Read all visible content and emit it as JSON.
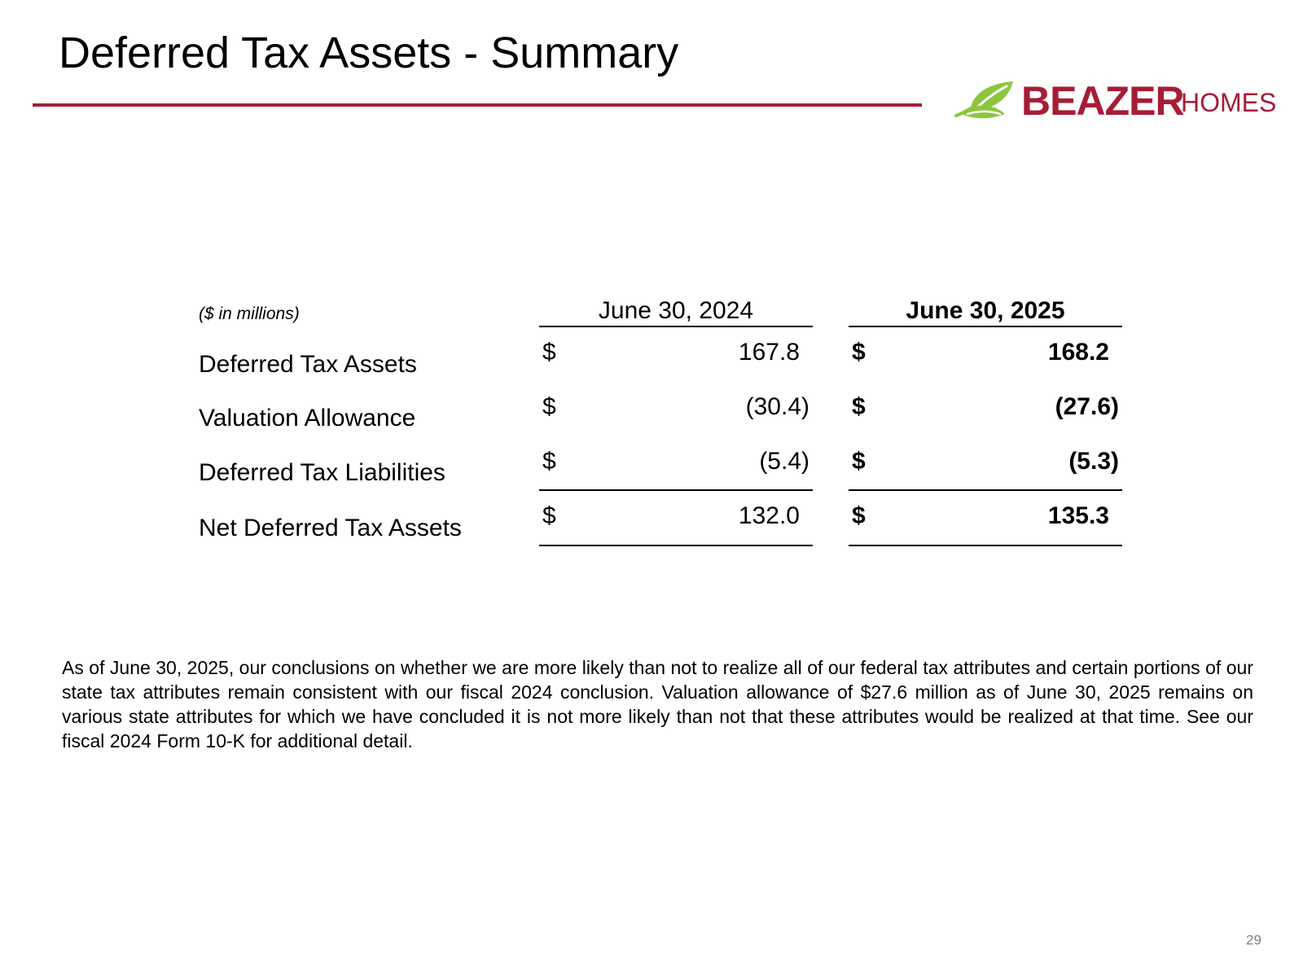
{
  "slide": {
    "title": "Deferred Tax Assets - Summary",
    "page_number": "29"
  },
  "logo": {
    "brand": "BEAZER",
    "sub": "HOMES"
  },
  "table": {
    "units_note": "($ in millions)",
    "columns": [
      "June 30, 2024",
      "June 30, 2025"
    ],
    "rows": [
      {
        "label": "Deferred Tax Assets",
        "currency": [
          "$",
          "$"
        ],
        "values": [
          "167.8",
          "168.2"
        ]
      },
      {
        "label": "Valuation Allowance",
        "currency": [
          "$",
          "$"
        ],
        "values": [
          "(30.4)",
          "(27.6)"
        ]
      },
      {
        "label": "Deferred Tax Liabilities",
        "currency": [
          "$",
          "$"
        ],
        "values": [
          "(5.4)",
          "(5.3)"
        ]
      },
      {
        "label": "Net Deferred Tax Assets",
        "currency": [
          "$",
          "$"
        ],
        "values": [
          "132.0",
          "135.3"
        ]
      }
    ]
  },
  "note": "As of June 30, 2025, our conclusions on whether we are more likely than not to realize all of our federal tax attributes and certain portions of our state tax attributes remain consistent with our fiscal 2024 conclusion. Valuation allowance of $27.6 million as of June 30, 2025 remains on various state attributes for which we have concluded it is not more likely than not that these attributes would be realized at that time. See our fiscal 2024 Form 10-K for additional detail.",
  "colors": {
    "accent": "#a51d35",
    "logo_leaf": "#8cc63f"
  }
}
